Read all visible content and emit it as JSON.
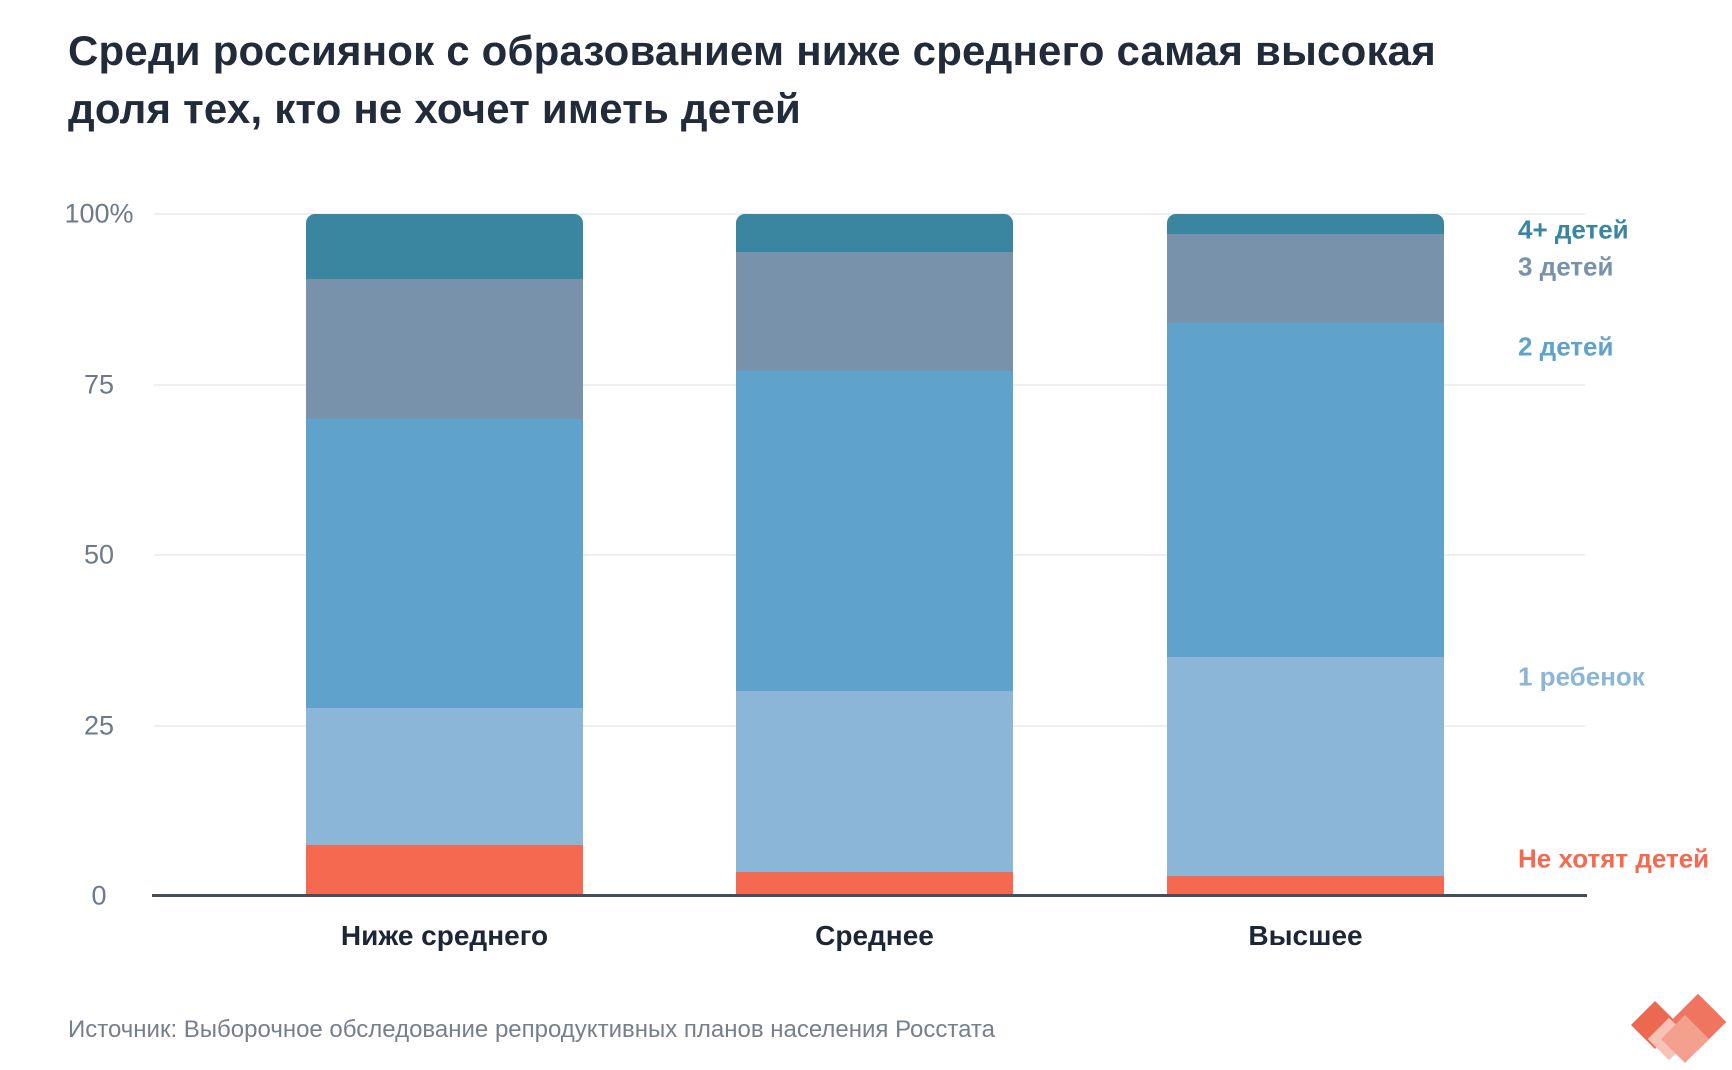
{
  "title_lines": [
    "Среди россиянок с образованием ниже среднего самая высокая",
    "доля тех, кто не хочет иметь детей"
  ],
  "source": "Источник: Выборочное обследование репродуктивных планов населения Росстата",
  "logo": "heart-diamonds-logo",
  "colors": {
    "title": "#212b3a",
    "tick_label": "#6e7a88",
    "category_label": "#1d2634",
    "source_text": "#75808d",
    "axis_line": "#454e5b",
    "gridline": "#edeff2",
    "logo_coral_dark": "#ec6850",
    "logo_coral": "#ef7560",
    "logo_pink_light": "#f9c2b6",
    "logo_pink": "#f4a08f"
  },
  "chart_data": {
    "type": "bar",
    "stacked": true,
    "unit": "%",
    "title": "Среди россиянок с образованием ниже среднего самая высокая доля тех, кто не хочет иметь детей",
    "categories": [
      "Ниже среднего",
      "Среднее",
      "Высшее"
    ],
    "series": [
      {
        "name": "Не хотят детей",
        "color": "#f4694f",
        "values": [
          7.5,
          3.5,
          3
        ]
      },
      {
        "name": "1 ребенок",
        "color": "#8bb6d8",
        "values": [
          20,
          26.5,
          32
        ]
      },
      {
        "name": "2 детей",
        "color": "#5fa2cb",
        "values": [
          42.5,
          47,
          49
        ]
      },
      {
        "name": "3 детей",
        "color": "#7992ac",
        "values": [
          20.5,
          17.5,
          13
        ]
      },
      {
        "name": "4+ детей",
        "color": "#3a859f",
        "values": [
          9.5,
          5.5,
          3
        ]
      }
    ],
    "legend_order_top_to_bottom": [
      "4+ детей",
      "3 детей",
      "2 детей",
      "1 ребенок",
      "Не хотят детей"
    ],
    "yticks": [
      {
        "label": "100%",
        "value": 100
      },
      {
        "label": "75",
        "value": 75
      },
      {
        "label": "50",
        "value": 50
      },
      {
        "label": "25",
        "value": 25
      },
      {
        "label": "0",
        "value": 0
      }
    ],
    "ylim": [
      0,
      100
    ],
    "grid": true,
    "legend_position": "right"
  }
}
